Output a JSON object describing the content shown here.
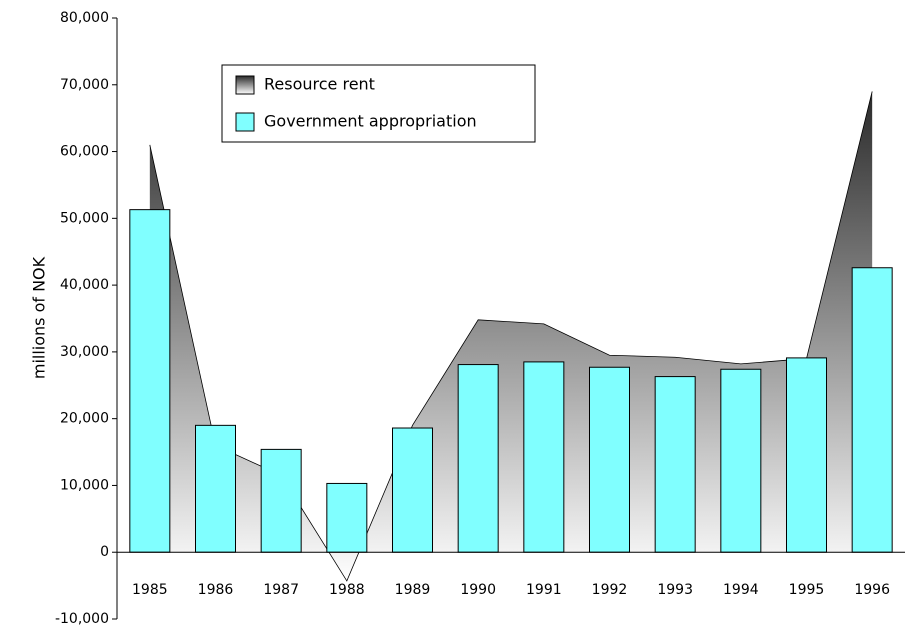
{
  "chart_data": {
    "type": "bar-area",
    "y_label": "millions of NOK",
    "categories": [
      "1985",
      "1986",
      "1987",
      "1988",
      "1989",
      "1990",
      "1991",
      "1992",
      "1993",
      "1994",
      "1995",
      "1996"
    ],
    "series": [
      {
        "name": "Resource rent",
        "kind": "area",
        "color": "#333333",
        "values": [
          61000,
          16000,
          11500,
          -4300,
          19000,
          34800,
          34200,
          29500,
          29200,
          28200,
          29000,
          69000
        ]
      },
      {
        "name": "Government appropriation",
        "kind": "bar",
        "color": "#80ffff",
        "values": [
          51300,
          19000,
          15400,
          10300,
          18600,
          28100,
          28500,
          27700,
          26300,
          27400,
          29100,
          42600
        ]
      }
    ],
    "ylim": [
      -10000,
      80000
    ],
    "yticks": [
      {
        "value": -10000,
        "label": "-10,000"
      },
      0,
      {
        "value": 10000,
        "label": "10,000"
      },
      {
        "value": 20000,
        "label": "20,000"
      },
      {
        "value": 30000,
        "label": "30,000"
      },
      {
        "value": 40000,
        "label": "40,000"
      },
      {
        "value": 50000,
        "label": "50,000"
      },
      {
        "value": 60000,
        "label": "60,000"
      },
      {
        "value": 70000,
        "label": "70,000"
      },
      {
        "value": 80000,
        "label": "80,000"
      }
    ]
  }
}
